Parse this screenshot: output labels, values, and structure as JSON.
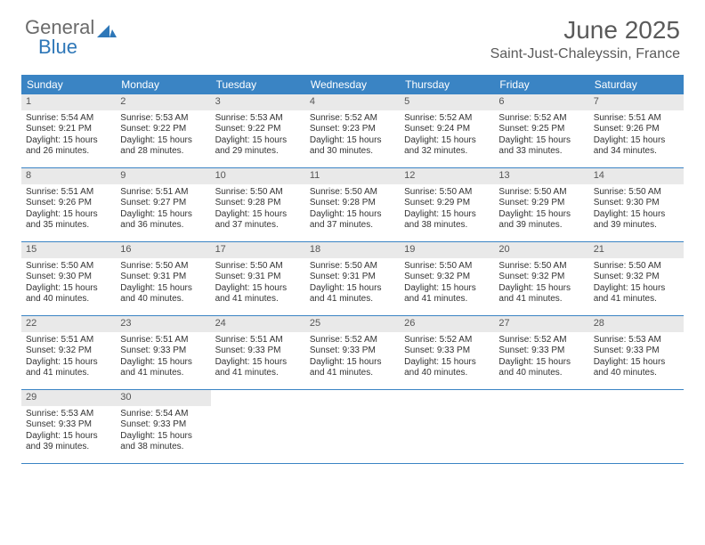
{
  "brand": {
    "word1": "General",
    "word2": "Blue"
  },
  "title": "June 2025",
  "location": "Saint-Just-Chaleyssin, France",
  "colors": {
    "header_bg": "#3a84c4",
    "header_text": "#ffffff",
    "daynum_bg": "#e9e9e9",
    "border": "#3a84c4",
    "brand_gray": "#6b6b6b",
    "brand_blue": "#2e77b8"
  },
  "typography": {
    "title_fontsize": 28,
    "location_fontsize": 16,
    "header_fontsize": 12,
    "cell_fontsize": 10
  },
  "day_names": [
    "Sunday",
    "Monday",
    "Tuesday",
    "Wednesday",
    "Thursday",
    "Friday",
    "Saturday"
  ],
  "weeks": [
    [
      {
        "n": "1",
        "sr": "5:54 AM",
        "ss": "9:21 PM",
        "dl": "15 hours and 26 minutes."
      },
      {
        "n": "2",
        "sr": "5:53 AM",
        "ss": "9:22 PM",
        "dl": "15 hours and 28 minutes."
      },
      {
        "n": "3",
        "sr": "5:53 AM",
        "ss": "9:22 PM",
        "dl": "15 hours and 29 minutes."
      },
      {
        "n": "4",
        "sr": "5:52 AM",
        "ss": "9:23 PM",
        "dl": "15 hours and 30 minutes."
      },
      {
        "n": "5",
        "sr": "5:52 AM",
        "ss": "9:24 PM",
        "dl": "15 hours and 32 minutes."
      },
      {
        "n": "6",
        "sr": "5:52 AM",
        "ss": "9:25 PM",
        "dl": "15 hours and 33 minutes."
      },
      {
        "n": "7",
        "sr": "5:51 AM",
        "ss": "9:26 PM",
        "dl": "15 hours and 34 minutes."
      }
    ],
    [
      {
        "n": "8",
        "sr": "5:51 AM",
        "ss": "9:26 PM",
        "dl": "15 hours and 35 minutes."
      },
      {
        "n": "9",
        "sr": "5:51 AM",
        "ss": "9:27 PM",
        "dl": "15 hours and 36 minutes."
      },
      {
        "n": "10",
        "sr": "5:50 AM",
        "ss": "9:28 PM",
        "dl": "15 hours and 37 minutes."
      },
      {
        "n": "11",
        "sr": "5:50 AM",
        "ss": "9:28 PM",
        "dl": "15 hours and 37 minutes."
      },
      {
        "n": "12",
        "sr": "5:50 AM",
        "ss": "9:29 PM",
        "dl": "15 hours and 38 minutes."
      },
      {
        "n": "13",
        "sr": "5:50 AM",
        "ss": "9:29 PM",
        "dl": "15 hours and 39 minutes."
      },
      {
        "n": "14",
        "sr": "5:50 AM",
        "ss": "9:30 PM",
        "dl": "15 hours and 39 minutes."
      }
    ],
    [
      {
        "n": "15",
        "sr": "5:50 AM",
        "ss": "9:30 PM",
        "dl": "15 hours and 40 minutes."
      },
      {
        "n": "16",
        "sr": "5:50 AM",
        "ss": "9:31 PM",
        "dl": "15 hours and 40 minutes."
      },
      {
        "n": "17",
        "sr": "5:50 AM",
        "ss": "9:31 PM",
        "dl": "15 hours and 41 minutes."
      },
      {
        "n": "18",
        "sr": "5:50 AM",
        "ss": "9:31 PM",
        "dl": "15 hours and 41 minutes."
      },
      {
        "n": "19",
        "sr": "5:50 AM",
        "ss": "9:32 PM",
        "dl": "15 hours and 41 minutes."
      },
      {
        "n": "20",
        "sr": "5:50 AM",
        "ss": "9:32 PM",
        "dl": "15 hours and 41 minutes."
      },
      {
        "n": "21",
        "sr": "5:50 AM",
        "ss": "9:32 PM",
        "dl": "15 hours and 41 minutes."
      }
    ],
    [
      {
        "n": "22",
        "sr": "5:51 AM",
        "ss": "9:32 PM",
        "dl": "15 hours and 41 minutes."
      },
      {
        "n": "23",
        "sr": "5:51 AM",
        "ss": "9:33 PM",
        "dl": "15 hours and 41 minutes."
      },
      {
        "n": "24",
        "sr": "5:51 AM",
        "ss": "9:33 PM",
        "dl": "15 hours and 41 minutes."
      },
      {
        "n": "25",
        "sr": "5:52 AM",
        "ss": "9:33 PM",
        "dl": "15 hours and 41 minutes."
      },
      {
        "n": "26",
        "sr": "5:52 AM",
        "ss": "9:33 PM",
        "dl": "15 hours and 40 minutes."
      },
      {
        "n": "27",
        "sr": "5:52 AM",
        "ss": "9:33 PM",
        "dl": "15 hours and 40 minutes."
      },
      {
        "n": "28",
        "sr": "5:53 AM",
        "ss": "9:33 PM",
        "dl": "15 hours and 40 minutes."
      }
    ],
    [
      {
        "n": "29",
        "sr": "5:53 AM",
        "ss": "9:33 PM",
        "dl": "15 hours and 39 minutes."
      },
      {
        "n": "30",
        "sr": "5:54 AM",
        "ss": "9:33 PM",
        "dl": "15 hours and 38 minutes."
      },
      null,
      null,
      null,
      null,
      null
    ]
  ],
  "labels": {
    "sunrise": "Sunrise:",
    "sunset": "Sunset:",
    "daylight": "Daylight:"
  }
}
